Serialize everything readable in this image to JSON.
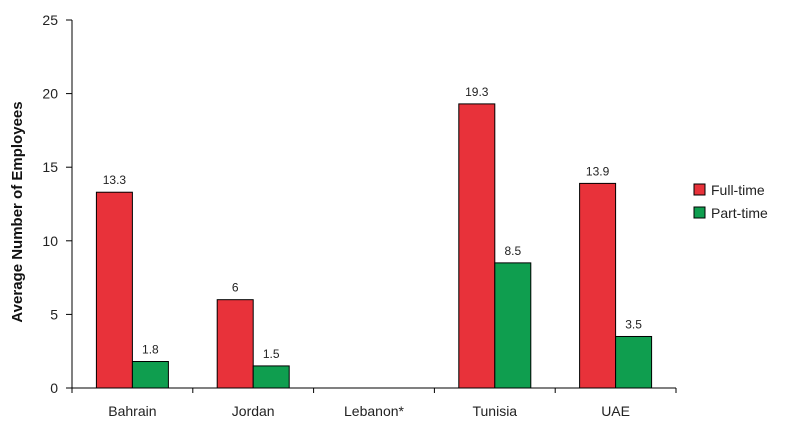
{
  "chart_data": {
    "type": "bar",
    "categories": [
      "Bahrain",
      "Jordan",
      "Lebanon*",
      "Tunisia",
      "UAE"
    ],
    "series": [
      {
        "name": "Full-time",
        "color": "#e8323a",
        "values": [
          13.3,
          6,
          null,
          19.3,
          13.9
        ]
      },
      {
        "name": "Part-time",
        "color": "#0f9e4f",
        "values": [
          1.8,
          1.5,
          null,
          8.5,
          3.5
        ]
      }
    ],
    "data_labels": [
      [
        "13.3",
        "6",
        "",
        "19.3",
        "13.9"
      ],
      [
        "1.8",
        "1.5",
        "",
        "8.5",
        "3.5"
      ]
    ],
    "ylabel": "Average Number of Employees",
    "ylim": [
      0,
      25
    ],
    "yticks": [
      "0",
      "5",
      "10",
      "15",
      "20",
      "25"
    ],
    "grid": false,
    "legend": "right"
  }
}
